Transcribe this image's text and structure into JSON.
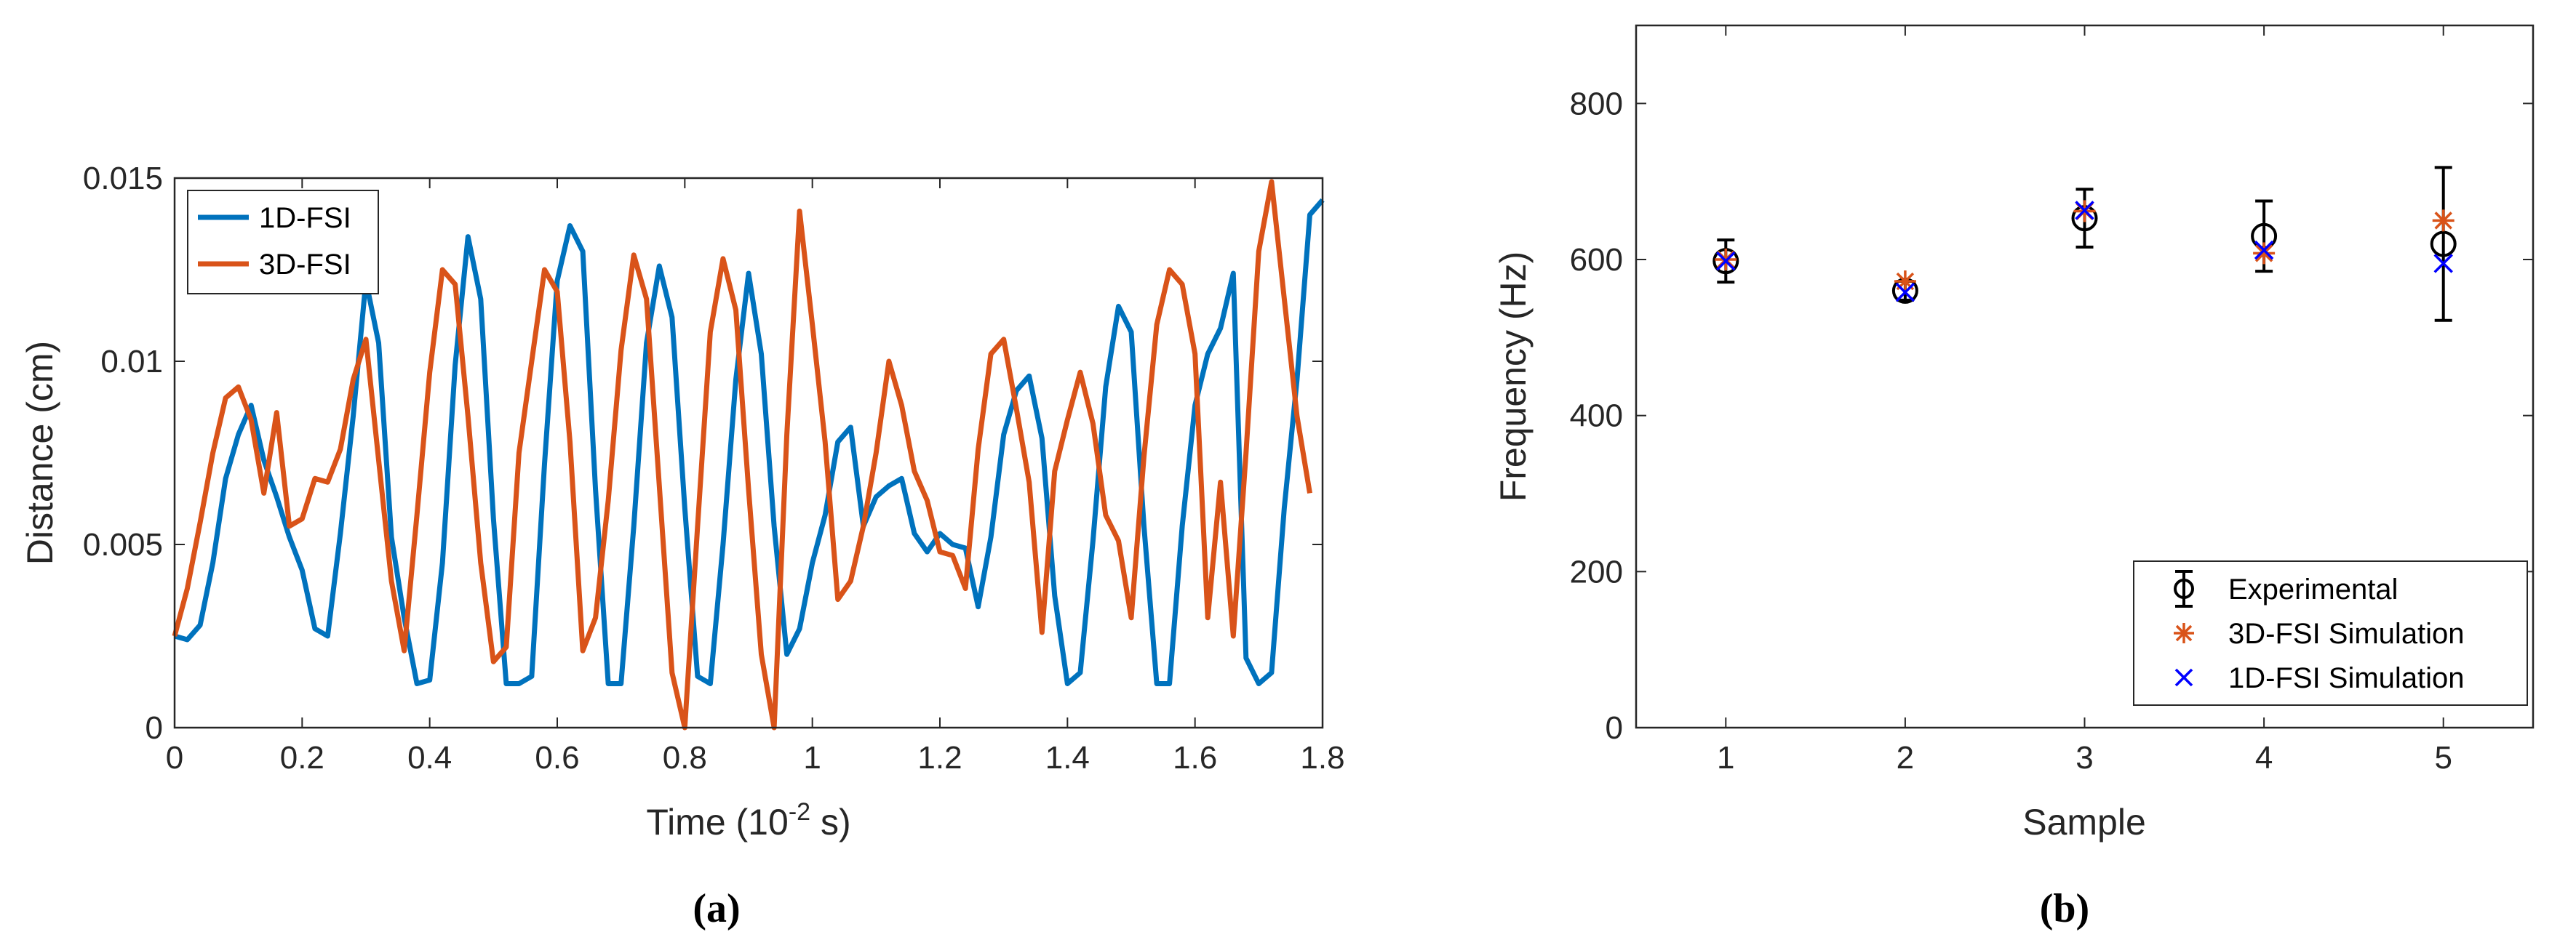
{
  "colors": {
    "blue": "#0072BD",
    "orange": "#D95319",
    "sim_blue": "#0000FF",
    "black": "#000000"
  },
  "chart_data": [
    {
      "type": "line",
      "caption": "(a)",
      "xlabel_main": "Time (10",
      "xlabel_exp": "-2",
      "xlabel_tail": " s)",
      "ylabel": "Distance (cm)",
      "xlim": [
        0,
        1.8
      ],
      "ylim": [
        0,
        0.015
      ],
      "xticks": [
        "0",
        "0.2",
        "0.4",
        "0.6",
        "0.8",
        "1",
        "1.2",
        "1.4",
        "1.6",
        "1.8"
      ],
      "yticks": [
        "0",
        "0.005",
        "0.01",
        "0.015"
      ],
      "legend_position": "top-left",
      "series": [
        {
          "name": "1D-FSI",
          "color": "#0072BD",
          "points": [
            [
              0,
              0.0025
            ],
            [
              0.02,
              0.0024
            ],
            [
              0.04,
              0.0028
            ],
            [
              0.06,
              0.0045
            ],
            [
              0.08,
              0.0068
            ],
            [
              0.1,
              0.008
            ],
            [
              0.12,
              0.0088
            ],
            [
              0.14,
              0.0073
            ],
            [
              0.16,
              0.0063
            ],
            [
              0.18,
              0.0052
            ],
            [
              0.2,
              0.0043
            ],
            [
              0.22,
              0.0027
            ],
            [
              0.24,
              0.0025
            ],
            [
              0.26,
              0.0053
            ],
            [
              0.28,
              0.0085
            ],
            [
              0.3,
              0.0122
            ],
            [
              0.32,
              0.0105
            ],
            [
              0.34,
              0.0052
            ],
            [
              0.36,
              0.003
            ],
            [
              0.38,
              0.0012
            ],
            [
              0.4,
              0.0013
            ],
            [
              0.42,
              0.0045
            ],
            [
              0.44,
              0.0099
            ],
            [
              0.46,
              0.0134
            ],
            [
              0.48,
              0.0117
            ],
            [
              0.5,
              0.0057
            ],
            [
              0.52,
              0.0012
            ],
            [
              0.54,
              0.0012
            ],
            [
              0.56,
              0.0014
            ],
            [
              0.58,
              0.0072
            ],
            [
              0.6,
              0.0122
            ],
            [
              0.62,
              0.0137
            ],
            [
              0.64,
              0.013
            ],
            [
              0.66,
              0.0065
            ],
            [
              0.68,
              0.0012
            ],
            [
              0.7,
              0.0012
            ],
            [
              0.72,
              0.0055
            ],
            [
              0.74,
              0.0105
            ],
            [
              0.76,
              0.0126
            ],
            [
              0.78,
              0.0112
            ],
            [
              0.8,
              0.006
            ],
            [
              0.82,
              0.0014
            ],
            [
              0.84,
              0.0012
            ],
            [
              0.86,
              0.005
            ],
            [
              0.88,
              0.0095
            ],
            [
              0.9,
              0.0124
            ],
            [
              0.92,
              0.0102
            ],
            [
              0.94,
              0.0055
            ],
            [
              0.96,
              0.002
            ],
            [
              0.98,
              0.0027
            ],
            [
              1,
              0.0045
            ],
            [
              1.02,
              0.0058
            ],
            [
              1.04,
              0.0078
            ],
            [
              1.06,
              0.0082
            ],
            [
              1.08,
              0.0055
            ],
            [
              1.1,
              0.0063
            ],
            [
              1.12,
              0.0066
            ],
            [
              1.14,
              0.0068
            ],
            [
              1.16,
              0.0053
            ],
            [
              1.18,
              0.0048
            ],
            [
              1.2,
              0.0053
            ],
            [
              1.22,
              0.005
            ],
            [
              1.24,
              0.0049
            ],
            [
              1.26,
              0.0033
            ],
            [
              1.28,
              0.0052
            ],
            [
              1.3,
              0.008
            ],
            [
              1.32,
              0.0092
            ],
            [
              1.34,
              0.0096
            ],
            [
              1.36,
              0.0079
            ],
            [
              1.38,
              0.0036
            ],
            [
              1.4,
              0.0012
            ],
            [
              1.42,
              0.0015
            ],
            [
              1.44,
              0.0051
            ],
            [
              1.46,
              0.0093
            ],
            [
              1.48,
              0.0115
            ],
            [
              1.5,
              0.0108
            ],
            [
              1.52,
              0.0055
            ],
            [
              1.54,
              0.0012
            ],
            [
              1.56,
              0.0012
            ],
            [
              1.58,
              0.0055
            ],
            [
              1.6,
              0.0088
            ],
            [
              1.62,
              0.0102
            ],
            [
              1.64,
              0.0109
            ],
            [
              1.66,
              0.0124
            ],
            [
              1.68,
              0.0019
            ],
            [
              1.7,
              0.0012
            ],
            [
              1.72,
              0.0015
            ],
            [
              1.74,
              0.006
            ],
            [
              1.76,
              0.0095
            ],
            [
              1.78,
              0.014
            ],
            [
              1.8,
              0.0144
            ]
          ]
        },
        {
          "name": "3D-FSI",
          "color": "#D95319",
          "points": [
            [
              0,
              0.0025
            ],
            [
              0.02,
              0.0038
            ],
            [
              0.04,
              0.0056
            ],
            [
              0.06,
              0.0075
            ],
            [
              0.08,
              0.009
            ],
            [
              0.1,
              0.0093
            ],
            [
              0.12,
              0.0084
            ],
            [
              0.14,
              0.0064
            ],
            [
              0.16,
              0.0086
            ],
            [
              0.18,
              0.0055
            ],
            [
              0.2,
              0.0057
            ],
            [
              0.22,
              0.0068
            ],
            [
              0.24,
              0.0067
            ],
            [
              0.26,
              0.0076
            ],
            [
              0.28,
              0.0095
            ],
            [
              0.3,
              0.0106
            ],
            [
              0.32,
              0.0073
            ],
            [
              0.34,
              0.004
            ],
            [
              0.36,
              0.0021
            ],
            [
              0.38,
              0.0058
            ],
            [
              0.4,
              0.0097
            ],
            [
              0.42,
              0.0125
            ],
            [
              0.44,
              0.0121
            ],
            [
              0.46,
              0.0085
            ],
            [
              0.48,
              0.0045
            ],
            [
              0.5,
              0.0018
            ],
            [
              0.52,
              0.0022
            ],
            [
              0.54,
              0.0075
            ],
            [
              0.56,
              0.01
            ],
            [
              0.58,
              0.0125
            ],
            [
              0.6,
              0.0119
            ],
            [
              0.62,
              0.0078
            ],
            [
              0.64,
              0.0021
            ],
            [
              0.66,
              0.003
            ],
            [
              0.68,
              0.0062
            ],
            [
              0.7,
              0.0103
            ],
            [
              0.72,
              0.0129
            ],
            [
              0.74,
              0.0117
            ],
            [
              0.76,
              0.0066
            ],
            [
              0.78,
              0.0015
            ],
            [
              0.8,
              0.0
            ],
            [
              0.82,
              0.0055
            ],
            [
              0.84,
              0.0108
            ],
            [
              0.86,
              0.0128
            ],
            [
              0.88,
              0.0114
            ],
            [
              0.9,
              0.0065
            ],
            [
              0.92,
              0.002
            ],
            [
              0.94,
              0.0
            ],
            [
              0.96,
              0.008
            ],
            [
              0.98,
              0.0141
            ],
            [
              1,
              0.011
            ],
            [
              1.02,
              0.0078
            ],
            [
              1.04,
              0.0035
            ],
            [
              1.06,
              0.004
            ],
            [
              1.08,
              0.0055
            ],
            [
              1.1,
              0.0075
            ],
            [
              1.12,
              0.01
            ],
            [
              1.14,
              0.0088
            ],
            [
              1.16,
              0.007
            ],
            [
              1.18,
              0.0062
            ],
            [
              1.2,
              0.0048
            ],
            [
              1.22,
              0.0047
            ],
            [
              1.24,
              0.0038
            ],
            [
              1.26,
              0.0076
            ],
            [
              1.28,
              0.0102
            ],
            [
              1.3,
              0.0106
            ],
            [
              1.32,
              0.0087
            ],
            [
              1.34,
              0.0067
            ],
            [
              1.36,
              0.0026
            ],
            [
              1.38,
              0.007
            ],
            [
              1.4,
              0.0084
            ],
            [
              1.42,
              0.0097
            ],
            [
              1.44,
              0.0083
            ],
            [
              1.46,
              0.0058
            ],
            [
              1.48,
              0.0051
            ],
            [
              1.5,
              0.003
            ],
            [
              1.52,
              0.0074
            ],
            [
              1.54,
              0.011
            ],
            [
              1.56,
              0.0125
            ],
            [
              1.58,
              0.0121
            ],
            [
              1.6,
              0.0102
            ],
            [
              1.62,
              0.003
            ],
            [
              1.64,
              0.0067
            ],
            [
              1.66,
              0.0025
            ],
            [
              1.68,
              0.0075
            ],
            [
              1.7,
              0.013
            ],
            [
              1.72,
              0.0149
            ],
            [
              1.74,
              0.0117
            ],
            [
              1.76,
              0.0085
            ],
            [
              1.78,
              0.0064
            ]
          ]
        }
      ]
    },
    {
      "type": "scatter",
      "caption": "(b)",
      "xlabel": "Sample",
      "ylabel": "Frequency (Hz)",
      "xlim": [
        0.5,
        5.5
      ],
      "ylim": [
        0,
        900
      ],
      "xticks": [
        "1",
        "2",
        "3",
        "4",
        "5"
      ],
      "yticks": [
        "0",
        "200",
        "400",
        "600",
        "800"
      ],
      "legend_position": "bottom-right",
      "categories": [
        1,
        2,
        3,
        4,
        5
      ],
      "series": [
        {
          "name": "Experimental",
          "color": "#000000",
          "marker": "circle-errorbar",
          "values": [
            598,
            560,
            653,
            630,
            620
          ],
          "error": [
            27,
            12,
            37,
            45,
            98
          ]
        },
        {
          "name": "3D-FSI Simulation",
          "color": "#D95319",
          "marker": "asterisk",
          "values": [
            600,
            572,
            662,
            608,
            650
          ]
        },
        {
          "name": "1D-FSI Simulation",
          "color": "#0000FF",
          "marker": "x",
          "values": [
            598,
            558,
            663,
            612,
            595
          ]
        }
      ]
    }
  ]
}
